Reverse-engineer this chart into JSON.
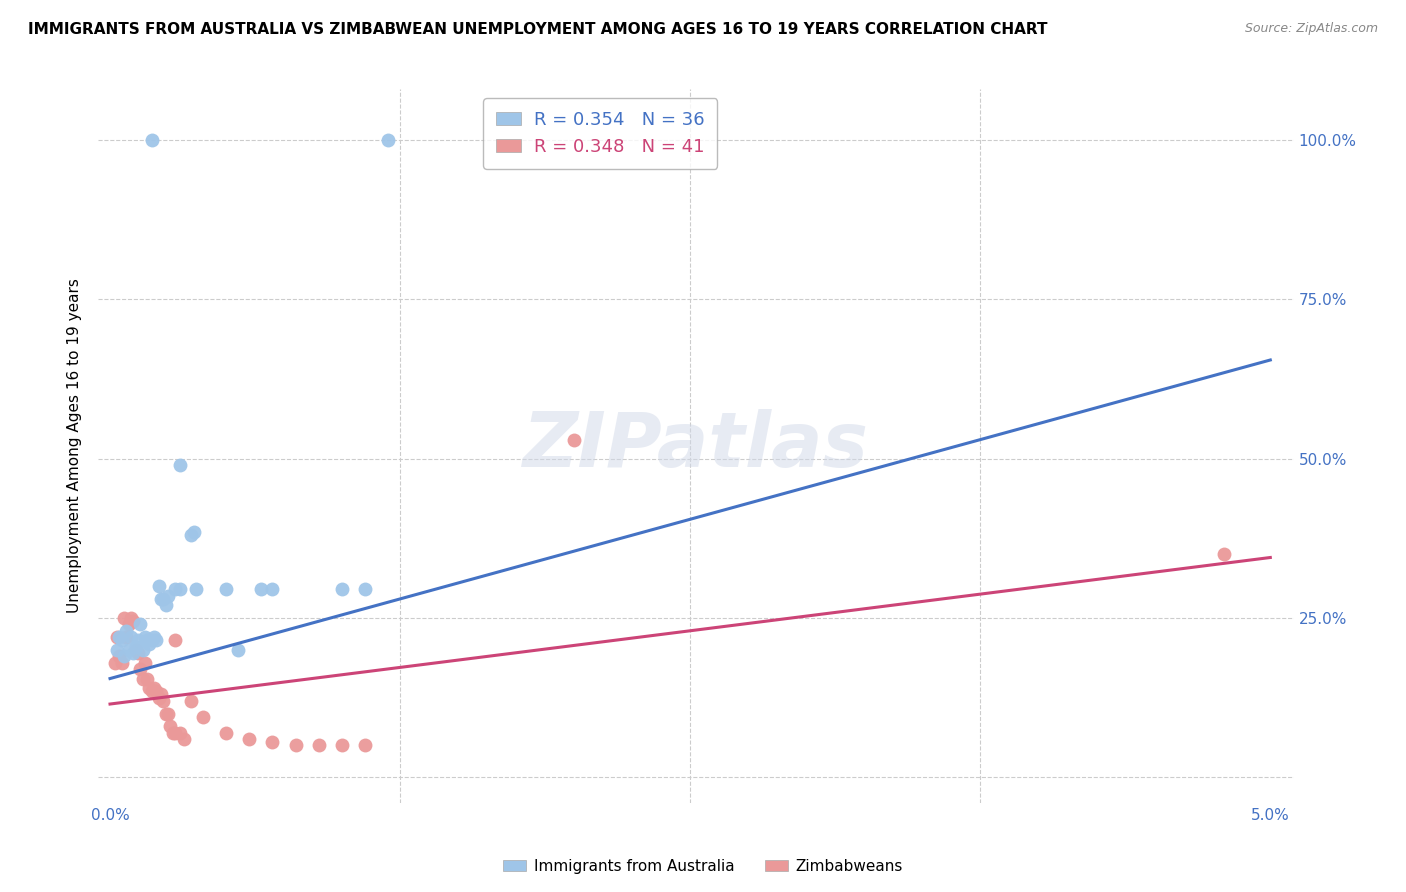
{
  "title": "IMMIGRANTS FROM AUSTRALIA VS ZIMBABWEAN UNEMPLOYMENT AMONG AGES 16 TO 19 YEARS CORRELATION CHART",
  "source": "Source: ZipAtlas.com",
  "ylabel": "Unemployment Among Ages 16 to 19 years",
  "right_yticks": [
    "100.0%",
    "75.0%",
    "50.0%",
    "25.0%"
  ],
  "right_ytick_vals": [
    1.0,
    0.75,
    0.5,
    0.25
  ],
  "watermark": "ZIPatlas",
  "blue_color": "#9fc5e8",
  "pink_color": "#ea9999",
  "line_blue": "#4472c4",
  "line_pink": "#cc4477",
  "blue_scatter": [
    [
      0.0003,
      0.2
    ],
    [
      0.0004,
      0.22
    ],
    [
      0.0005,
      0.215
    ],
    [
      0.0006,
      0.19
    ],
    [
      0.0007,
      0.23
    ],
    [
      0.0008,
      0.2
    ],
    [
      0.0009,
      0.22
    ],
    [
      0.001,
      0.195
    ],
    [
      0.0011,
      0.205
    ],
    [
      0.0012,
      0.215
    ],
    [
      0.0013,
      0.24
    ],
    [
      0.0014,
      0.2
    ],
    [
      0.0015,
      0.22
    ],
    [
      0.0016,
      0.215
    ],
    [
      0.0017,
      0.21
    ],
    [
      0.0018,
      0.215
    ],
    [
      0.0019,
      0.22
    ],
    [
      0.002,
      0.215
    ],
    [
      0.0021,
      0.3
    ],
    [
      0.0022,
      0.28
    ],
    [
      0.0023,
      0.28
    ],
    [
      0.0024,
      0.27
    ],
    [
      0.0025,
      0.285
    ],
    [
      0.0028,
      0.295
    ],
    [
      0.003,
      0.295
    ],
    [
      0.0035,
      0.38
    ],
    [
      0.0036,
      0.385
    ],
    [
      0.0037,
      0.295
    ],
    [
      0.005,
      0.295
    ],
    [
      0.0055,
      0.2
    ],
    [
      0.0065,
      0.295
    ],
    [
      0.007,
      0.295
    ],
    [
      0.01,
      0.295
    ],
    [
      0.011,
      0.295
    ],
    [
      0.003,
      0.49
    ],
    [
      0.0018,
      1.0
    ],
    [
      0.012,
      1.0
    ]
  ],
  "pink_scatter": [
    [
      0.0002,
      0.18
    ],
    [
      0.0003,
      0.22
    ],
    [
      0.0004,
      0.19
    ],
    [
      0.0005,
      0.18
    ],
    [
      0.0006,
      0.25
    ],
    [
      0.0007,
      0.22
    ],
    [
      0.0008,
      0.24
    ],
    [
      0.0009,
      0.25
    ],
    [
      0.001,
      0.245
    ],
    [
      0.0011,
      0.2
    ],
    [
      0.0012,
      0.195
    ],
    [
      0.0013,
      0.17
    ],
    [
      0.0014,
      0.155
    ],
    [
      0.0015,
      0.18
    ],
    [
      0.0016,
      0.155
    ],
    [
      0.0017,
      0.14
    ],
    [
      0.0018,
      0.135
    ],
    [
      0.0019,
      0.14
    ],
    [
      0.002,
      0.135
    ],
    [
      0.0021,
      0.125
    ],
    [
      0.0022,
      0.13
    ],
    [
      0.0023,
      0.12
    ],
    [
      0.0024,
      0.1
    ],
    [
      0.0025,
      0.1
    ],
    [
      0.0026,
      0.08
    ],
    [
      0.0027,
      0.07
    ],
    [
      0.0028,
      0.07
    ],
    [
      0.003,
      0.07
    ],
    [
      0.0032,
      0.06
    ],
    [
      0.0035,
      0.12
    ],
    [
      0.004,
      0.095
    ],
    [
      0.0028,
      0.215
    ],
    [
      0.005,
      0.07
    ],
    [
      0.006,
      0.06
    ],
    [
      0.007,
      0.055
    ],
    [
      0.008,
      0.05
    ],
    [
      0.009,
      0.05
    ],
    [
      0.01,
      0.05
    ],
    [
      0.011,
      0.05
    ],
    [
      0.02,
      0.53
    ],
    [
      0.048,
      0.35
    ]
  ],
  "blue_line_x": [
    0.0,
    0.05
  ],
  "blue_line_y": [
    0.155,
    0.655
  ],
  "pink_line_x": [
    0.0,
    0.05
  ],
  "pink_line_y": [
    0.115,
    0.345
  ],
  "xlim": [
    -0.0005,
    0.051
  ],
  "ylim": [
    -0.04,
    1.08
  ],
  "xticks": [
    0.0,
    0.0125,
    0.025,
    0.0375,
    0.05
  ],
  "ytick_positions": [
    0.0,
    0.25,
    0.5,
    0.75,
    1.0
  ],
  "figsize": [
    14.06,
    8.92
  ],
  "dpi": 100
}
